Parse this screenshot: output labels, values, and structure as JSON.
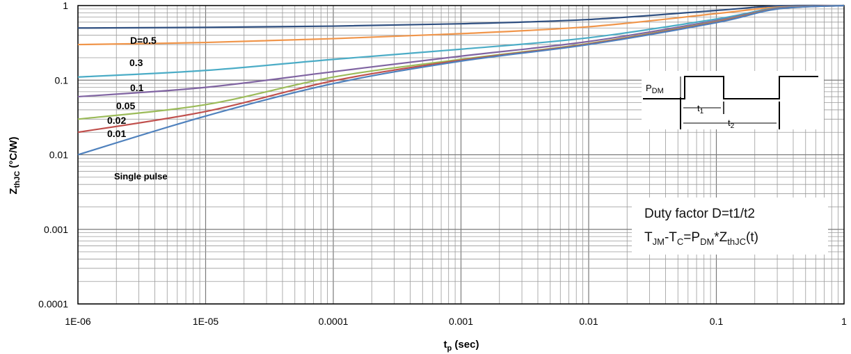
{
  "chart_data": {
    "type": "line",
    "x_scale": "log",
    "y_scale": "log",
    "xlim": [
      1e-06,
      1
    ],
    "ylim": [
      0.0001,
      1
    ],
    "x_ticks": [
      "1E-06",
      "1E-05",
      "0.0001",
      "0.001",
      "0.01",
      "0.1",
      "1"
    ],
    "y_ticks": [
      "1",
      "0.1",
      "0.01",
      "0.001",
      "0.0001"
    ],
    "grid": true,
    "xlabel": {
      "main": "t",
      "sub": "p",
      "rest": " (sec)"
    },
    "ylabel": {
      "main": "Z",
      "sub": "thJC",
      "rest": " (°C/W)"
    },
    "series": [
      {
        "name": "D=0.5",
        "color": "#2f4f80",
        "x": [
          1e-06,
          1e-05,
          0.0001,
          0.001,
          0.01,
          0.1,
          0.3,
          1
        ],
        "y": [
          0.5,
          0.51,
          0.53,
          0.57,
          0.65,
          0.86,
          0.99,
          1.0
        ]
      },
      {
        "name": "0.3",
        "color": "#f0954a",
        "x": [
          1e-06,
          1e-05,
          0.0001,
          0.001,
          0.01,
          0.1,
          0.3,
          1
        ],
        "y": [
          0.3,
          0.32,
          0.36,
          0.42,
          0.52,
          0.78,
          0.95,
          1.0
        ]
      },
      {
        "name": "0.1",
        "color": "#4bacc6",
        "x": [
          1e-06,
          1e-05,
          0.0001,
          0.001,
          0.01,
          0.1,
          0.3,
          1
        ],
        "y": [
          0.11,
          0.135,
          0.19,
          0.26,
          0.37,
          0.66,
          0.93,
          1.0
        ]
      },
      {
        "name": "0.05",
        "color": "#8064a2",
        "x": [
          1e-06,
          1e-05,
          0.0001,
          0.001,
          0.01,
          0.1,
          0.3,
          1
        ],
        "y": [
          0.06,
          0.08,
          0.13,
          0.21,
          0.33,
          0.63,
          0.92,
          1.0
        ]
      },
      {
        "name": "0.02",
        "color": "#9bbb59",
        "x": [
          1e-06,
          1e-05,
          0.0001,
          0.001,
          0.01,
          0.1,
          0.3,
          1
        ],
        "y": [
          0.03,
          0.047,
          0.11,
          0.19,
          0.31,
          0.61,
          0.91,
          1.0
        ]
      },
      {
        "name": "0.01",
        "color": "#c0504d",
        "x": [
          1e-06,
          1e-05,
          0.0001,
          0.001,
          0.01,
          0.1,
          0.3,
          1
        ],
        "y": [
          0.02,
          0.038,
          0.098,
          0.185,
          0.305,
          0.6,
          0.905,
          1.0
        ]
      },
      {
        "name": "Single pulse",
        "color": "#4f81bd",
        "x": [
          1e-06,
          1e-05,
          0.0001,
          0.001,
          0.01,
          0.1,
          0.3,
          1
        ],
        "y": [
          0.01,
          0.033,
          0.09,
          0.18,
          0.3,
          0.59,
          0.9,
          1.0
        ]
      }
    ],
    "annotations": {
      "duty_factor": "Duty factor D=t1/t2",
      "formula": {
        "a": "T",
        "a_sub": "JM",
        "b": "-T",
        "b_sub": "C",
        "c": "=P",
        "c_sub": "DM",
        "d": "*Z",
        "d_sub": "thJC",
        "e": "(t)"
      },
      "inset": {
        "p": "P",
        "p_sub": "DM",
        "t1": "t",
        "t1_sub": "1",
        "t2": "t",
        "t2_sub": "2"
      }
    }
  }
}
